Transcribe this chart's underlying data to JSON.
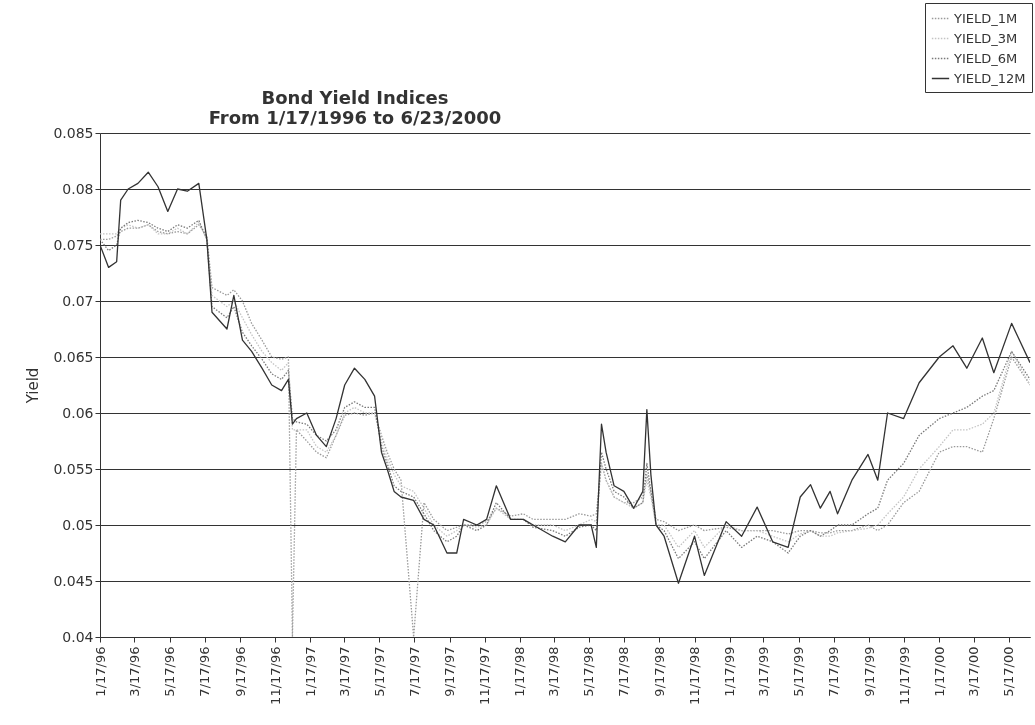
{
  "chart_data": {
    "type": "line",
    "title": "Bond Yield Indices",
    "subtitle": "From 1/17/1996 to 6/23/2000",
    "ylabel": "Yield",
    "x": [
      "1996-01-17",
      "1996-02-01",
      "1996-02-15",
      "1996-02-22",
      "1996-03-06",
      "1996-03-23",
      "1996-04-10",
      "1996-04-27",
      "1996-05-14",
      "1996-05-31",
      "1996-06-17",
      "1996-07-07",
      "1996-07-21",
      "1996-07-30",
      "1996-08-25",
      "1996-09-06",
      "1996-09-21",
      "1996-10-07",
      "1996-10-25",
      "1996-11-11",
      "1996-11-28",
      "1996-12-10",
      "1996-12-17",
      "1996-12-24",
      "1997-01-11",
      "1997-01-28",
      "1997-02-14",
      "1997-03-03",
      "1997-03-18",
      "1997-04-04",
      "1997-04-22",
      "1997-05-09",
      "1997-05-21",
      "1997-05-31",
      "1997-06-12",
      "1997-06-24",
      "1997-07-16",
      "1997-08-03",
      "1997-08-20",
      "1997-09-12",
      "1997-09-29",
      "1997-10-11",
      "1997-11-03",
      "1997-11-20",
      "1997-12-07",
      "1998-01-01",
      "1998-01-23",
      "1998-02-09",
      "1998-03-15",
      "1998-04-06",
      "1998-04-30",
      "1998-05-21",
      "1998-05-30",
      "1998-06-08",
      "1998-06-16",
      "1998-06-30",
      "1998-07-17",
      "1998-08-03",
      "1998-08-19",
      "1998-08-26",
      "1998-09-02",
      "1998-09-11",
      "1998-09-25",
      "1998-10-20",
      "1998-11-17",
      "1998-12-04",
      "1999-01-11",
      "1999-02-07",
      "1999-03-06",
      "1999-04-02",
      "1999-04-29",
      "1999-05-20",
      "1999-06-07",
      "1999-06-24",
      "1999-07-11",
      "1999-07-24",
      "1999-08-18",
      "1999-09-15",
      "1999-10-02",
      "1999-10-19",
      "1999-11-16",
      "1999-12-13",
      "2000-01-17",
      "2000-02-10",
      "2000-03-05",
      "2000-04-01",
      "2000-04-21",
      "2000-05-22",
      "2000-06-23"
    ],
    "series": [
      {
        "name": "YIELD_1M",
        "color": "#9a9a9a",
        "line_style": "dotted",
        "values": [
          0.0755,
          0.0755,
          0.0758,
          0.0762,
          0.0765,
          0.0765,
          0.0768,
          0.0762,
          0.076,
          0.0762,
          0.076,
          0.0768,
          0.0758,
          0.0712,
          0.0705,
          0.071,
          0.07,
          0.068,
          0.0665,
          0.065,
          0.0648,
          0.065,
          0.04,
          0.0585,
          0.0575,
          0.0565,
          0.056,
          0.058,
          0.0598,
          0.06,
          0.0598,
          0.06,
          0.058,
          0.0565,
          0.055,
          0.054,
          0.04,
          0.052,
          0.0505,
          0.0495,
          0.0498,
          0.05,
          0.05,
          0.0503,
          0.0515,
          0.0508,
          0.051,
          0.0505,
          0.0505,
          0.0505,
          0.051,
          0.0508,
          0.051,
          0.0555,
          0.054,
          0.0525,
          0.052,
          0.052,
          0.0525,
          0.0545,
          0.053,
          0.0505,
          0.0503,
          0.0495,
          0.05,
          0.0495,
          0.0498,
          0.0495,
          0.0495,
          0.0495,
          0.0492,
          0.0495,
          0.0495,
          0.0493,
          0.0493,
          0.0495,
          0.0495,
          0.05,
          0.0495,
          0.05,
          0.052,
          0.053,
          0.0565,
          0.057,
          0.057,
          0.0565,
          0.0595,
          0.065,
          0.0625
        ]
      },
      {
        "name": "YIELD_3M",
        "color": "#c4c4c4",
        "line_style": "dotted",
        "values": [
          0.076,
          0.076,
          0.076,
          0.0765,
          0.0768,
          0.0765,
          0.0768,
          0.076,
          0.076,
          0.0765,
          0.076,
          0.077,
          0.0755,
          0.0705,
          0.0695,
          0.07,
          0.0685,
          0.067,
          0.0655,
          0.0645,
          0.0638,
          0.0645,
          0.0585,
          0.0585,
          0.0585,
          0.057,
          0.0565,
          0.058,
          0.06,
          0.0605,
          0.06,
          0.06,
          0.0575,
          0.056,
          0.0545,
          0.0535,
          0.053,
          0.0515,
          0.05,
          0.049,
          0.0495,
          0.05,
          0.0498,
          0.05,
          0.0515,
          0.0505,
          0.0505,
          0.05,
          0.05,
          0.0495,
          0.05,
          0.0505,
          0.0503,
          0.0555,
          0.054,
          0.0525,
          0.052,
          0.0515,
          0.052,
          0.054,
          0.0525,
          0.05,
          0.05,
          0.048,
          0.0495,
          0.048,
          0.05,
          0.0495,
          0.0495,
          0.049,
          0.0485,
          0.0492,
          0.0495,
          0.049,
          0.049,
          0.0493,
          0.0495,
          0.0497,
          0.05,
          0.051,
          0.0525,
          0.055,
          0.057,
          0.0585,
          0.0585,
          0.059,
          0.06,
          0.0655,
          0.0625
        ]
      },
      {
        "name": "YIELD_6M",
        "color": "#7a7a7a",
        "line_style": "dotted",
        "values": [
          0.0755,
          0.0745,
          0.075,
          0.0765,
          0.077,
          0.0772,
          0.077,
          0.0765,
          0.0762,
          0.0768,
          0.0765,
          0.0772,
          0.0755,
          0.0695,
          0.0685,
          0.0695,
          0.0672,
          0.066,
          0.0648,
          0.0635,
          0.063,
          0.0638,
          0.0595,
          0.0592,
          0.059,
          0.058,
          0.0575,
          0.0585,
          0.0605,
          0.061,
          0.0605,
          0.0605,
          0.057,
          0.0555,
          0.0535,
          0.053,
          0.0525,
          0.051,
          0.0495,
          0.0485,
          0.049,
          0.05,
          0.0495,
          0.05,
          0.052,
          0.0505,
          0.0505,
          0.0498,
          0.0495,
          0.049,
          0.0498,
          0.05,
          0.0495,
          0.0565,
          0.055,
          0.053,
          0.0525,
          0.0515,
          0.052,
          0.0555,
          0.053,
          0.05,
          0.0495,
          0.047,
          0.0485,
          0.047,
          0.0495,
          0.048,
          0.049,
          0.0485,
          0.0475,
          0.049,
          0.0495,
          0.049,
          0.0495,
          0.05,
          0.05,
          0.051,
          0.0515,
          0.054,
          0.0555,
          0.058,
          0.0595,
          0.06,
          0.0605,
          0.0615,
          0.062,
          0.0655,
          0.063
        ]
      },
      {
        "name": "YIELD_12M",
        "color": "#333333",
        "line_style": "solid",
        "values": [
          0.075,
          0.073,
          0.0735,
          0.079,
          0.08,
          0.0805,
          0.0815,
          0.0802,
          0.078,
          0.08,
          0.0798,
          0.0805,
          0.0755,
          0.069,
          0.0675,
          0.0705,
          0.0665,
          0.0655,
          0.064,
          0.0625,
          0.062,
          0.063,
          0.059,
          0.0595,
          0.06,
          0.058,
          0.057,
          0.0595,
          0.0625,
          0.064,
          0.063,
          0.0615,
          0.0565,
          0.055,
          0.053,
          0.0525,
          0.0522,
          0.0505,
          0.05,
          0.0475,
          0.0475,
          0.0505,
          0.05,
          0.0505,
          0.0535,
          0.0505,
          0.0505,
          0.05,
          0.049,
          0.0485,
          0.05,
          0.05,
          0.048,
          0.059,
          0.0565,
          0.0535,
          0.053,
          0.0515,
          0.053,
          0.0603,
          0.0545,
          0.05,
          0.049,
          0.0448,
          0.049,
          0.0455,
          0.0503,
          0.049,
          0.0516,
          0.0485,
          0.048,
          0.0525,
          0.0536,
          0.0515,
          0.053,
          0.051,
          0.054,
          0.0563,
          0.054,
          0.06,
          0.0595,
          0.0627,
          0.065,
          0.066,
          0.064,
          0.0667,
          0.0636,
          0.068,
          0.0645
        ]
      }
    ],
    "xlim": [
      "1996-01-17",
      "2000-06-23"
    ],
    "xticks": [
      {
        "value": "1996-01-17",
        "label": "1/17/96"
      },
      {
        "value": "1996-03-17",
        "label": "3/17/96"
      },
      {
        "value": "1996-05-17",
        "label": "5/17/96"
      },
      {
        "value": "1996-07-17",
        "label": "7/17/96"
      },
      {
        "value": "1996-09-17",
        "label": "9/17/96"
      },
      {
        "value": "1996-11-17",
        "label": "11/17/96"
      },
      {
        "value": "1997-01-17",
        "label": "1/17/97"
      },
      {
        "value": "1997-03-17",
        "label": "3/17/97"
      },
      {
        "value": "1997-05-17",
        "label": "5/17/97"
      },
      {
        "value": "1997-07-17",
        "label": "7/17/97"
      },
      {
        "value": "1997-09-17",
        "label": "9/17/97"
      },
      {
        "value": "1997-11-17",
        "label": "11/17/97"
      },
      {
        "value": "1998-01-17",
        "label": "1/17/98"
      },
      {
        "value": "1998-03-17",
        "label": "3/17/98"
      },
      {
        "value": "1998-05-17",
        "label": "5/17/98"
      },
      {
        "value": "1998-07-17",
        "label": "7/17/98"
      },
      {
        "value": "1998-09-17",
        "label": "9/17/98"
      },
      {
        "value": "1998-11-17",
        "label": "11/17/98"
      },
      {
        "value": "1999-01-17",
        "label": "1/17/99"
      },
      {
        "value": "1999-03-17",
        "label": "3/17/99"
      },
      {
        "value": "1999-05-17",
        "label": "5/17/99"
      },
      {
        "value": "1999-07-17",
        "label": "7/17/99"
      },
      {
        "value": "1999-09-17",
        "label": "9/17/99"
      },
      {
        "value": "1999-11-17",
        "label": "11/17/99"
      },
      {
        "value": "2000-01-17",
        "label": "1/17/00"
      },
      {
        "value": "2000-03-17",
        "label": "3/17/00"
      },
      {
        "value": "2000-05-17",
        "label": "5/17/00"
      }
    ],
    "ylim": [
      0.04,
      0.085
    ],
    "yticks": [
      0.04,
      0.045,
      0.05,
      0.055,
      0.06,
      0.065,
      0.07,
      0.075,
      0.08,
      0.085
    ],
    "grid": "y",
    "legend": "top right"
  }
}
